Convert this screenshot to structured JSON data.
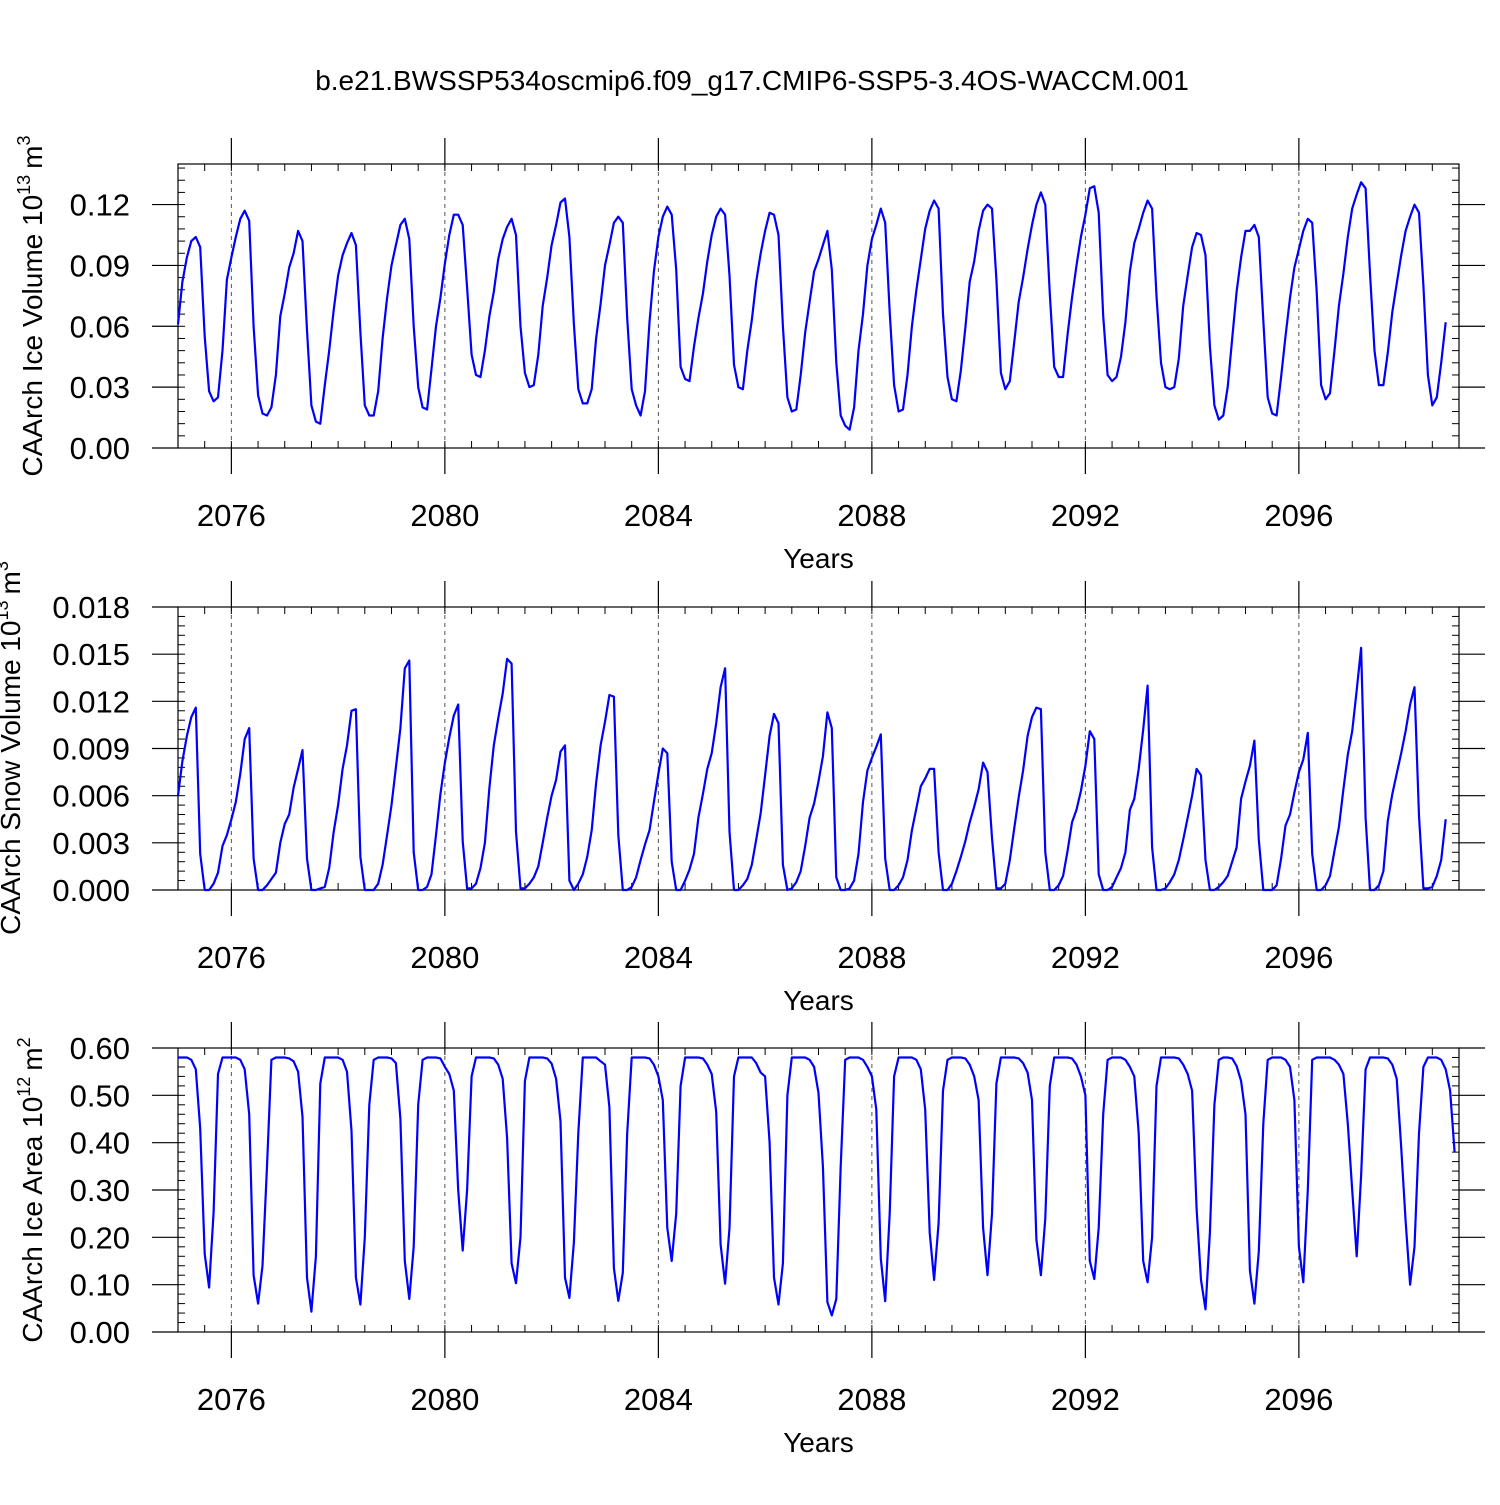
{
  "title": "b.e21.BWSSP534oscmip6.f09_g17.CMIP6-SSP5-3.4OS-WACCM.001",
  "colors": {
    "line": "#0000ff",
    "axis": "#000000",
    "grid": "#555555"
  },
  "chart_data": [
    {
      "type": "line",
      "name": "ice-volume",
      "ylabel": "CAArch Ice Volume 10",
      "ylabel_exp": "13",
      "ylabel_unit": "m",
      "ylabel_unit_exp": "3",
      "xlabel": "Years",
      "xlim": [
        2075,
        2099
      ],
      "ylim": [
        0,
        0.14
      ],
      "yticks": [
        0,
        0.03,
        0.06,
        0.09,
        0.12
      ],
      "ytick_labels": [
        "0.00",
        "0.03",
        "0.06",
        "0.09",
        "0.12"
      ],
      "xticks": [
        2076,
        2080,
        2084,
        2088,
        2092,
        2096
      ],
      "xtick_labels": [
        "2076",
        "2080",
        "2084",
        "2088",
        "2092",
        "2096"
      ],
      "grid_x": [
        2076,
        2080,
        2084,
        2088,
        2092,
        2096
      ],
      "series": [
        {
          "name": "CAArch Ice Volume",
          "x_start": 2075,
          "x_step": 0.08333333,
          "values": [
            0.061,
            0.082,
            0.094,
            0.102,
            0.104,
            0.099,
            0.055,
            0.028,
            0.023,
            0.025,
            0.048,
            0.083,
            0.094,
            0.104,
            0.113,
            0.117,
            0.112,
            0.06,
            0.026,
            0.017,
            0.016,
            0.02,
            0.036,
            0.065,
            0.076,
            0.089,
            0.096,
            0.107,
            0.102,
            0.058,
            0.021,
            0.013,
            0.012,
            0.031,
            0.048,
            0.068,
            0.085,
            0.095,
            0.101,
            0.106,
            0.1,
            0.057,
            0.021,
            0.016,
            0.016,
            0.028,
            0.054,
            0.074,
            0.09,
            0.1,
            0.11,
            0.113,
            0.103,
            0.06,
            0.03,
            0.02,
            0.019,
            0.039,
            0.06,
            0.074,
            0.091,
            0.105,
            0.115,
            0.115,
            0.11,
            0.079,
            0.046,
            0.036,
            0.035,
            0.048,
            0.065,
            0.077,
            0.093,
            0.103,
            0.109,
            0.113,
            0.105,
            0.06,
            0.037,
            0.03,
            0.031,
            0.046,
            0.07,
            0.084,
            0.1,
            0.11,
            0.121,
            0.123,
            0.104,
            0.061,
            0.029,
            0.022,
            0.022,
            0.029,
            0.054,
            0.071,
            0.09,
            0.1,
            0.111,
            0.114,
            0.111,
            0.064,
            0.029,
            0.021,
            0.016,
            0.028,
            0.062,
            0.087,
            0.104,
            0.114,
            0.119,
            0.115,
            0.088,
            0.04,
            0.034,
            0.033,
            0.05,
            0.064,
            0.076,
            0.092,
            0.105,
            0.114,
            0.118,
            0.115,
            0.085,
            0.041,
            0.03,
            0.029,
            0.048,
            0.063,
            0.082,
            0.096,
            0.107,
            0.116,
            0.115,
            0.105,
            0.06,
            0.025,
            0.018,
            0.019,
            0.036,
            0.057,
            0.072,
            0.087,
            0.093,
            0.1,
            0.107,
            0.088,
            0.042,
            0.016,
            0.011,
            0.009,
            0.02,
            0.048,
            0.066,
            0.09,
            0.103,
            0.11,
            0.118,
            0.111,
            0.067,
            0.031,
            0.018,
            0.019,
            0.036,
            0.06,
            0.078,
            0.093,
            0.108,
            0.117,
            0.122,
            0.118,
            0.066,
            0.035,
            0.024,
            0.023,
            0.038,
            0.059,
            0.082,
            0.092,
            0.107,
            0.117,
            0.12,
            0.118,
            0.083,
            0.037,
            0.029,
            0.033,
            0.052,
            0.072,
            0.084,
            0.098,
            0.11,
            0.12,
            0.126,
            0.12,
            0.076,
            0.04,
            0.035,
            0.035,
            0.056,
            0.074,
            0.09,
            0.104,
            0.115,
            0.128,
            0.129,
            0.116,
            0.065,
            0.036,
            0.033,
            0.035,
            0.045,
            0.062,
            0.087,
            0.101,
            0.108,
            0.116,
            0.122,
            0.118,
            0.075,
            0.042,
            0.03,
            0.029,
            0.03,
            0.044,
            0.07,
            0.085,
            0.099,
            0.106,
            0.105,
            0.095,
            0.05,
            0.021,
            0.014,
            0.016,
            0.03,
            0.054,
            0.077,
            0.094,
            0.107,
            0.107,
            0.11,
            0.104,
            0.063,
            0.025,
            0.017,
            0.016,
            0.035,
            0.055,
            0.074,
            0.089,
            0.098,
            0.107,
            0.113,
            0.111,
            0.077,
            0.031,
            0.024,
            0.027,
            0.048,
            0.07,
            0.086,
            0.104,
            0.118,
            0.125,
            0.131,
            0.128,
            0.086,
            0.048,
            0.031,
            0.031,
            0.047,
            0.067,
            0.081,
            0.095,
            0.107,
            0.114,
            0.12,
            0.116,
            0.08,
            0.036,
            0.021,
            0.025,
            0.042,
            0.062
          ]
        }
      ]
    },
    {
      "type": "line",
      "name": "snow-volume",
      "ylabel": "CAArch Snow Volume 10",
      "ylabel_exp": "13",
      "ylabel_unit": "m",
      "ylabel_unit_exp": "3",
      "xlabel": "Years",
      "xlim": [
        2075,
        2099
      ],
      "ylim": [
        0,
        0.018
      ],
      "yticks": [
        0,
        0.003,
        0.006,
        0.009,
        0.012,
        0.015,
        0.018
      ],
      "ytick_labels": [
        "0.000",
        "0.003",
        "0.006",
        "0.009",
        "0.012",
        "0.015",
        "0.018"
      ],
      "xticks": [
        2076,
        2080,
        2084,
        2088,
        2092,
        2096
      ],
      "xtick_labels": [
        "2076",
        "2080",
        "2084",
        "2088",
        "2092",
        "2096"
      ],
      "grid_x": [
        2076,
        2080,
        2084,
        2088,
        2092,
        2096
      ],
      "series": [
        {
          "name": "CAArch Snow Volume",
          "x_start": 2075,
          "x_step": 0.08333333,
          "values": [
            0.006,
            0.0082,
            0.0098,
            0.011,
            0.0116,
            0.0023,
            0.0,
            0.0,
            0.0004,
            0.0011,
            0.0028,
            0.0035,
            0.0045,
            0.0056,
            0.0074,
            0.0096,
            0.0103,
            0.002,
            0.0,
            0.0,
            0.0003,
            0.0007,
            0.0011,
            0.003,
            0.0042,
            0.0048,
            0.0065,
            0.0077,
            0.0089,
            0.002,
            0.0,
            0.0,
            0.0001,
            0.0002,
            0.0014,
            0.0037,
            0.0054,
            0.0077,
            0.0092,
            0.0114,
            0.0115,
            0.0021,
            0.0,
            0.0,
            0.0,
            0.0004,
            0.0016,
            0.0035,
            0.0054,
            0.0078,
            0.0103,
            0.0141,
            0.0146,
            0.0024,
            0.0,
            0.0,
            0.0002,
            0.001,
            0.0035,
            0.0061,
            0.0081,
            0.0097,
            0.0111,
            0.0118,
            0.0031,
            0.0001,
            0.0001,
            0.0004,
            0.0014,
            0.003,
            0.0065,
            0.0092,
            0.0109,
            0.0125,
            0.0147,
            0.0144,
            0.0037,
            0.0001,
            0.0001,
            0.0004,
            0.0008,
            0.0015,
            0.003,
            0.0046,
            0.006,
            0.007,
            0.0088,
            0.0092,
            0.0006,
            0.0,
            0.0004,
            0.001,
            0.0021,
            0.0038,
            0.0068,
            0.0092,
            0.0107,
            0.0124,
            0.0123,
            0.0035,
            0.0,
            0.0,
            0.0002,
            0.0008,
            0.0019,
            0.0029,
            0.0038,
            0.0056,
            0.0074,
            0.009,
            0.0087,
            0.0018,
            0.0,
            0.0,
            0.0006,
            0.0013,
            0.0023,
            0.0046,
            0.0061,
            0.0077,
            0.0087,
            0.0106,
            0.0129,
            0.0141,
            0.0037,
            0.0,
            0.0,
            0.0003,
            0.0007,
            0.0016,
            0.0032,
            0.0049,
            0.0073,
            0.0098,
            0.0112,
            0.0106,
            0.0016,
            0.0,
            0.0001,
            0.0005,
            0.0012,
            0.0028,
            0.0046,
            0.0055,
            0.0069,
            0.0085,
            0.0113,
            0.0103,
            0.0008,
            0.0,
            0.0,
            0.0001,
            0.0006,
            0.0023,
            0.0056,
            0.0076,
            0.0084,
            0.0091,
            0.0099,
            0.002,
            0.0,
            0.0,
            0.0003,
            0.0008,
            0.0019,
            0.0038,
            0.0052,
            0.0066,
            0.0071,
            0.0077,
            0.0077,
            0.0024,
            0.0,
            0.0,
            0.0004,
            0.0012,
            0.0021,
            0.0031,
            0.0043,
            0.0053,
            0.0064,
            0.0081,
            0.0075,
            0.0033,
            0.0001,
            0.0001,
            0.0004,
            0.0019,
            0.0039,
            0.0059,
            0.0076,
            0.0098,
            0.011,
            0.0116,
            0.0115,
            0.0024,
            0.0,
            0.0,
            0.0003,
            0.0009,
            0.0025,
            0.0043,
            0.0051,
            0.0063,
            0.0079,
            0.0101,
            0.0096,
            0.001,
            0.0,
            0.0,
            0.0002,
            0.0008,
            0.0014,
            0.0024,
            0.0051,
            0.0058,
            0.0077,
            0.0102,
            0.013,
            0.0027,
            0.0,
            0.0,
            0.0001,
            0.0005,
            0.001,
            0.0019,
            0.0032,
            0.0046,
            0.006,
            0.0077,
            0.0073,
            0.0019,
            0.0,
            0.0,
            0.0002,
            0.0005,
            0.0009,
            0.0018,
            0.0027,
            0.0058,
            0.0069,
            0.0079,
            0.0095,
            0.0032,
            0.0,
            0.0,
            0.0,
            0.0003,
            0.002,
            0.0041,
            0.0048,
            0.0062,
            0.0075,
            0.0083,
            0.01,
            0.0023,
            0.0,
            0.0,
            0.0003,
            0.0009,
            0.0025,
            0.004,
            0.0064,
            0.0086,
            0.0101,
            0.0127,
            0.0154,
            0.0046,
            0.0,
            0.0,
            0.0003,
            0.0012,
            0.0044,
            0.0061,
            0.0074,
            0.0087,
            0.0101,
            0.0118,
            0.0129,
            0.0047,
            0.0001,
            0.0001,
            0.0002,
            0.0009,
            0.0019,
            0.0045
          ]
        }
      ]
    },
    {
      "type": "line",
      "name": "ice-area",
      "ylabel": "CAArch Ice Area 10",
      "ylabel_exp": "12",
      "ylabel_unit": "m",
      "ylabel_unit_exp": "2",
      "xlabel": "Years",
      "xlim": [
        2075,
        2099
      ],
      "ylim": [
        0,
        0.6
      ],
      "yticks": [
        0,
        0.1,
        0.2,
        0.3,
        0.4,
        0.5,
        0.6
      ],
      "ytick_labels": [
        "0.00",
        "0.10",
        "0.20",
        "0.30",
        "0.40",
        "0.50",
        "0.60"
      ],
      "xticks": [
        2076,
        2080,
        2084,
        2088,
        2092,
        2096
      ],
      "xtick_labels": [
        "2076",
        "2080",
        "2084",
        "2088",
        "2092",
        "2096"
      ],
      "grid_x": [
        2076,
        2080,
        2084,
        2088,
        2092,
        2096
      ],
      "series": [
        {
          "name": "CAArch Ice Area",
          "x_start": 2075,
          "x_step": 0.08333333,
          "values": [
            0.58,
            0.58,
            0.58,
            0.575,
            0.555,
            0.43,
            0.165,
            0.094,
            0.253,
            0.545,
            0.58,
            0.58,
            0.58,
            0.58,
            0.575,
            0.555,
            0.46,
            0.12,
            0.06,
            0.14,
            0.35,
            0.575,
            0.58,
            0.58,
            0.58,
            0.578,
            0.572,
            0.55,
            0.455,
            0.115,
            0.043,
            0.16,
            0.525,
            0.58,
            0.58,
            0.58,
            0.58,
            0.575,
            0.55,
            0.425,
            0.115,
            0.058,
            0.2,
            0.48,
            0.575,
            0.58,
            0.58,
            0.58,
            0.578,
            0.568,
            0.45,
            0.15,
            0.07,
            0.18,
            0.48,
            0.575,
            0.58,
            0.58,
            0.58,
            0.578,
            0.56,
            0.545,
            0.51,
            0.3,
            0.172,
            0.3,
            0.54,
            0.58,
            0.58,
            0.58,
            0.58,
            0.578,
            0.565,
            0.535,
            0.41,
            0.145,
            0.103,
            0.2,
            0.53,
            0.58,
            0.58,
            0.58,
            0.58,
            0.578,
            0.567,
            0.535,
            0.445,
            0.115,
            0.072,
            0.19,
            0.42,
            0.58,
            0.58,
            0.58,
            0.58,
            0.572,
            0.565,
            0.475,
            0.135,
            0.066,
            0.125,
            0.42,
            0.58,
            0.58,
            0.58,
            0.58,
            0.578,
            0.565,
            0.54,
            0.49,
            0.22,
            0.15,
            0.25,
            0.52,
            0.58,
            0.58,
            0.58,
            0.58,
            0.578,
            0.565,
            0.545,
            0.465,
            0.185,
            0.102,
            0.22,
            0.54,
            0.58,
            0.58,
            0.58,
            0.58,
            0.568,
            0.548,
            0.54,
            0.4,
            0.115,
            0.058,
            0.145,
            0.5,
            0.58,
            0.58,
            0.58,
            0.58,
            0.575,
            0.56,
            0.505,
            0.35,
            0.063,
            0.035,
            0.07,
            0.35,
            0.575,
            0.58,
            0.58,
            0.58,
            0.575,
            0.56,
            0.54,
            0.47,
            0.155,
            0.065,
            0.25,
            0.54,
            0.58,
            0.58,
            0.58,
            0.58,
            0.575,
            0.555,
            0.47,
            0.21,
            0.11,
            0.23,
            0.51,
            0.575,
            0.58,
            0.58,
            0.58,
            0.578,
            0.565,
            0.54,
            0.49,
            0.22,
            0.12,
            0.25,
            0.525,
            0.58,
            0.58,
            0.58,
            0.58,
            0.578,
            0.568,
            0.548,
            0.49,
            0.195,
            0.12,
            0.24,
            0.52,
            0.58,
            0.58,
            0.58,
            0.58,
            0.578,
            0.565,
            0.54,
            0.5,
            0.15,
            0.112,
            0.22,
            0.46,
            0.575,
            0.58,
            0.58,
            0.58,
            0.575,
            0.56,
            0.54,
            0.42,
            0.15,
            0.105,
            0.2,
            0.52,
            0.58,
            0.58,
            0.58,
            0.58,
            0.578,
            0.565,
            0.545,
            0.51,
            0.26,
            0.11,
            0.048,
            0.21,
            0.48,
            0.575,
            0.58,
            0.58,
            0.578,
            0.562,
            0.53,
            0.46,
            0.13,
            0.06,
            0.17,
            0.44,
            0.575,
            0.58,
            0.58,
            0.58,
            0.575,
            0.56,
            0.49,
            0.18,
            0.105,
            0.3,
            0.575,
            0.58,
            0.58,
            0.58,
            0.58,
            0.575,
            0.565,
            0.545,
            0.44,
            0.3,
            0.16,
            0.33,
            0.555,
            0.58,
            0.58,
            0.58,
            0.58,
            0.578,
            0.565,
            0.535,
            0.39,
            0.235,
            0.1,
            0.18,
            0.42,
            0.56,
            0.58,
            0.58,
            0.58,
            0.575,
            0.555,
            0.51,
            0.38
          ]
        }
      ]
    }
  ]
}
